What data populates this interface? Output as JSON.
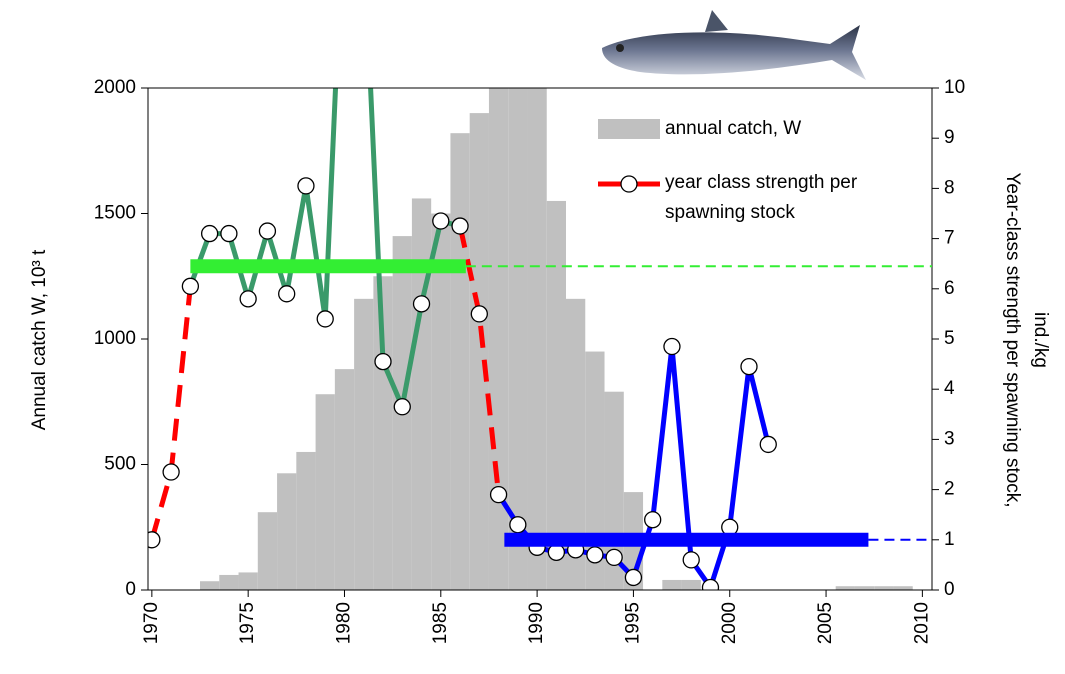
{
  "chart_data": {
    "type": "combo",
    "y_label": "Annual catch W, 10³ t",
    "y2_label": [
      "Year-class strength per spawning stock,",
      "ind./kg"
    ],
    "xlim": [
      1969.8,
      2010.5
    ],
    "xticks": [
      1970,
      1975,
      1980,
      1985,
      1990,
      1995,
      2000,
      2005,
      2010
    ],
    "ylim": [
      0,
      2000
    ],
    "yticks": [
      0,
      500,
      1000,
      1500,
      2000
    ],
    "y2lim": [
      0,
      10
    ],
    "y2ticks": [
      0,
      1,
      2,
      3,
      4,
      5,
      6,
      7,
      8,
      9,
      10
    ],
    "series": [
      {
        "name": "annual catch, W",
        "type": "bar",
        "color": "#c0c0c0",
        "x": [
          1973,
          1974,
          1975,
          1976,
          1977,
          1978,
          1979,
          1980,
          1981,
          1982,
          1983,
          1984,
          1985,
          1986,
          1987,
          1988,
          1989,
          1990,
          1991,
          1992,
          1993,
          1994,
          1995,
          1997,
          1998,
          2006,
          2007,
          2008,
          2009
        ],
        "values": [
          35,
          60,
          70,
          310,
          465,
          550,
          780,
          880,
          1160,
          1250,
          1410,
          1560,
          1500,
          1820,
          1900,
          2010,
          2000,
          2010,
          1550,
          1160,
          950,
          790,
          390,
          40,
          40,
          15,
          15,
          15,
          15
        ]
      },
      {
        "name": "year class strength per spawning stock",
        "type": "line",
        "axis": "y2",
        "color": "#ff0000",
        "x": [
          1970,
          1971,
          1972,
          1973,
          1974,
          1975,
          1976,
          1977,
          1978,
          1979,
          1980,
          1981,
          1982,
          1983,
          1984,
          1985,
          1986,
          1987,
          1988,
          1989,
          1990,
          1991,
          1992,
          1993,
          1994,
          1995,
          1996,
          1997,
          1998,
          1999,
          2000,
          2001,
          2002
        ],
        "values": [
          1.0,
          2.35,
          6.05,
          7.1,
          7.1,
          5.8,
          7.15,
          5.9,
          8.05,
          5.4,
          14,
          13,
          4.55,
          3.65,
          5.7,
          7.35,
          7.25,
          5.5,
          1.9,
          1.3,
          0.85,
          0.75,
          0.8,
          0.7,
          0.65,
          0.25,
          1.4,
          4.85,
          0.6,
          0.05,
          1.25,
          4.45,
          2.9
        ],
        "segments": [
          {
            "from": 1970,
            "to": 1972,
            "color": "#ff0000",
            "dashed": true
          },
          {
            "from": 1972,
            "to": 1986,
            "color": "#3a9a6a",
            "dashed": false
          },
          {
            "from": 1986,
            "to": 1988,
            "color": "#ff0000",
            "dashed": true
          },
          {
            "from": 1988,
            "to": 2002,
            "color": "#0000ff",
            "dashed": false
          }
        ]
      }
    ],
    "reference_lines": [
      {
        "value": 6.45,
        "x": [
          1972,
          1986.3
        ],
        "color": "#33ee33"
      },
      {
        "value": 1.0,
        "x": [
          1988.3,
          2007.2
        ],
        "color": "#0000ff"
      }
    ]
  }
}
